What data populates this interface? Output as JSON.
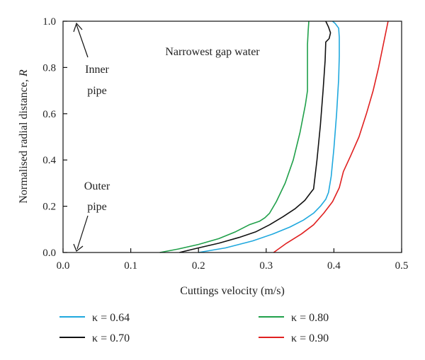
{
  "chart_data": {
    "type": "line",
    "title": "",
    "xlabel": "Cuttings velocity (m/s)",
    "ylabel_italic_var": "R",
    "ylabel_prefix": "Normalised radial distance, ",
    "xlim": [
      0.0,
      0.5
    ],
    "ylim": [
      0.0,
      1.0
    ],
    "x_ticks": [
      0.0,
      0.1,
      0.2,
      0.3,
      0.4,
      0.5
    ],
    "x_tick_labels": [
      "0.0",
      "0.1",
      "0.2",
      "0.3",
      "0.4",
      "0.5"
    ],
    "y_ticks": [
      0.0,
      0.2,
      0.4,
      0.6,
      0.8,
      1.0
    ],
    "y_tick_labels": [
      "0.0",
      "0.2",
      "0.4",
      "0.6",
      "0.8",
      "1.0"
    ],
    "grid": false,
    "legend_position": "bottom",
    "annotations": {
      "top_text": "Narrowest gap water",
      "inner_line1": "Inner",
      "inner_line2": "pipe",
      "outer_line1": "Outer",
      "outer_line2": "pipe"
    },
    "series": [
      {
        "name": "κ = 0.64",
        "color": "#1fa8de",
        "points": [
          [
            0.2,
            0.0
          ],
          [
            0.24,
            0.02
          ],
          [
            0.28,
            0.05
          ],
          [
            0.31,
            0.08
          ],
          [
            0.335,
            0.11
          ],
          [
            0.355,
            0.14
          ],
          [
            0.37,
            0.17
          ],
          [
            0.38,
            0.2
          ],
          [
            0.388,
            0.23
          ],
          [
            0.392,
            0.26
          ],
          [
            0.396,
            0.33
          ],
          [
            0.4,
            0.45
          ],
          [
            0.404,
            0.6
          ],
          [
            0.407,
            0.75
          ],
          [
            0.408,
            0.85
          ],
          [
            0.408,
            0.93
          ],
          [
            0.407,
            0.97
          ],
          [
            0.402,
            0.99
          ],
          [
            0.398,
            1.0
          ]
        ]
      },
      {
        "name": "κ = 0.80",
        "color": "#20a04a",
        "points": [
          [
            0.143,
            0.0
          ],
          [
            0.17,
            0.015
          ],
          [
            0.2,
            0.035
          ],
          [
            0.23,
            0.06
          ],
          [
            0.255,
            0.09
          ],
          [
            0.275,
            0.12
          ],
          [
            0.29,
            0.135
          ],
          [
            0.298,
            0.15
          ],
          [
            0.305,
            0.17
          ],
          [
            0.315,
            0.22
          ],
          [
            0.328,
            0.3
          ],
          [
            0.34,
            0.4
          ],
          [
            0.35,
            0.52
          ],
          [
            0.358,
            0.64
          ],
          [
            0.361,
            0.7
          ],
          [
            0.361,
            0.8
          ],
          [
            0.361,
            0.9
          ],
          [
            0.362,
            0.96
          ],
          [
            0.363,
            1.0
          ]
        ]
      },
      {
        "name": "κ = 0.70",
        "color": "#111111",
        "points": [
          [
            0.172,
            0.0
          ],
          [
            0.2,
            0.02
          ],
          [
            0.23,
            0.04
          ],
          [
            0.26,
            0.065
          ],
          [
            0.285,
            0.09
          ],
          [
            0.305,
            0.12
          ],
          [
            0.325,
            0.155
          ],
          [
            0.343,
            0.19
          ],
          [
            0.357,
            0.225
          ],
          [
            0.366,
            0.26
          ],
          [
            0.37,
            0.275
          ],
          [
            0.375,
            0.4
          ],
          [
            0.38,
            0.55
          ],
          [
            0.384,
            0.7
          ],
          [
            0.387,
            0.83
          ],
          [
            0.388,
            0.91
          ],
          [
            0.393,
            0.925
          ],
          [
            0.395,
            0.95
          ],
          [
            0.392,
            0.975
          ],
          [
            0.388,
            1.0
          ]
        ]
      },
      {
        "name": "κ = 0.90",
        "color": "#e02020",
        "points": [
          [
            0.311,
            0.0
          ],
          [
            0.33,
            0.04
          ],
          [
            0.352,
            0.08
          ],
          [
            0.37,
            0.12
          ],
          [
            0.385,
            0.17
          ],
          [
            0.398,
            0.22
          ],
          [
            0.408,
            0.28
          ],
          [
            0.414,
            0.35
          ],
          [
            0.425,
            0.42
          ],
          [
            0.437,
            0.5
          ],
          [
            0.448,
            0.6
          ],
          [
            0.458,
            0.7
          ],
          [
            0.466,
            0.8
          ],
          [
            0.473,
            0.9
          ],
          [
            0.48,
            1.0
          ]
        ]
      }
    ],
    "legend_layout": [
      [
        "κ = 0.64",
        "κ = 0.80"
      ],
      [
        "κ = 0.70",
        "κ = 0.90"
      ]
    ]
  }
}
